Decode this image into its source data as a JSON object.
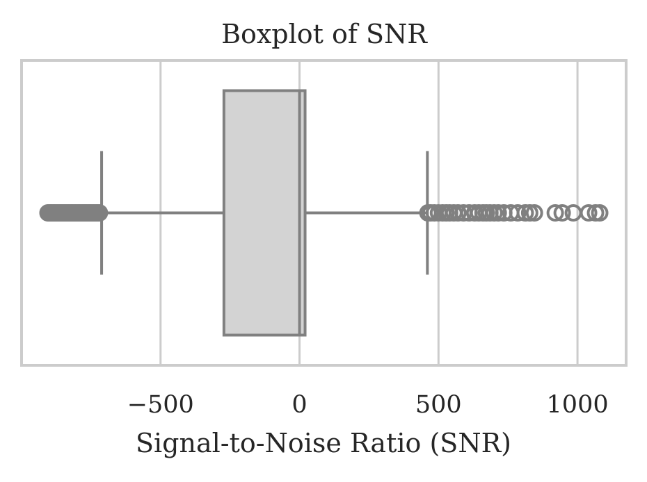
{
  "chart_data": {
    "type": "boxplot",
    "title": "Boxplot of SNR",
    "xlabel": "Signal-to-Noise Ratio (SNR)",
    "ylabel": "",
    "xlim": [
      -1000,
      1175
    ],
    "xticks": [
      -500,
      0,
      500,
      1000
    ],
    "xtick_labels": [
      "−500",
      "0",
      "500",
      "1000"
    ],
    "grid": true,
    "orientation": "horizontal",
    "box": {
      "whisker_low": -712,
      "q1": -272,
      "median": 0,
      "q3": 20,
      "whisker_high": 460
    },
    "outliers_low": [
      -905,
      -900,
      -895,
      -890,
      -885,
      -880,
      -875,
      -870,
      -865,
      -860,
      -855,
      -850,
      -845,
      -840,
      -835,
      -830,
      -825,
      -820,
      -815,
      -810,
      -805,
      -800,
      -795,
      -790,
      -785,
      -780,
      -775,
      -770,
      -765,
      -760,
      -755,
      -750,
      -745,
      -740,
      -735,
      -730,
      -725,
      -720
    ],
    "outliers_high": [
      462,
      472,
      485,
      500,
      515,
      528,
      540,
      555,
      570,
      590,
      610,
      630,
      645,
      660,
      672,
      685,
      700,
      715,
      735,
      760,
      785,
      812,
      828,
      845,
      920,
      945,
      985,
      1040,
      1065,
      1080
    ],
    "colors": {
      "box_fill": "#d3d3d3",
      "line": "#808080",
      "grid": "#cccccc",
      "frame": "#cccccc"
    }
  }
}
